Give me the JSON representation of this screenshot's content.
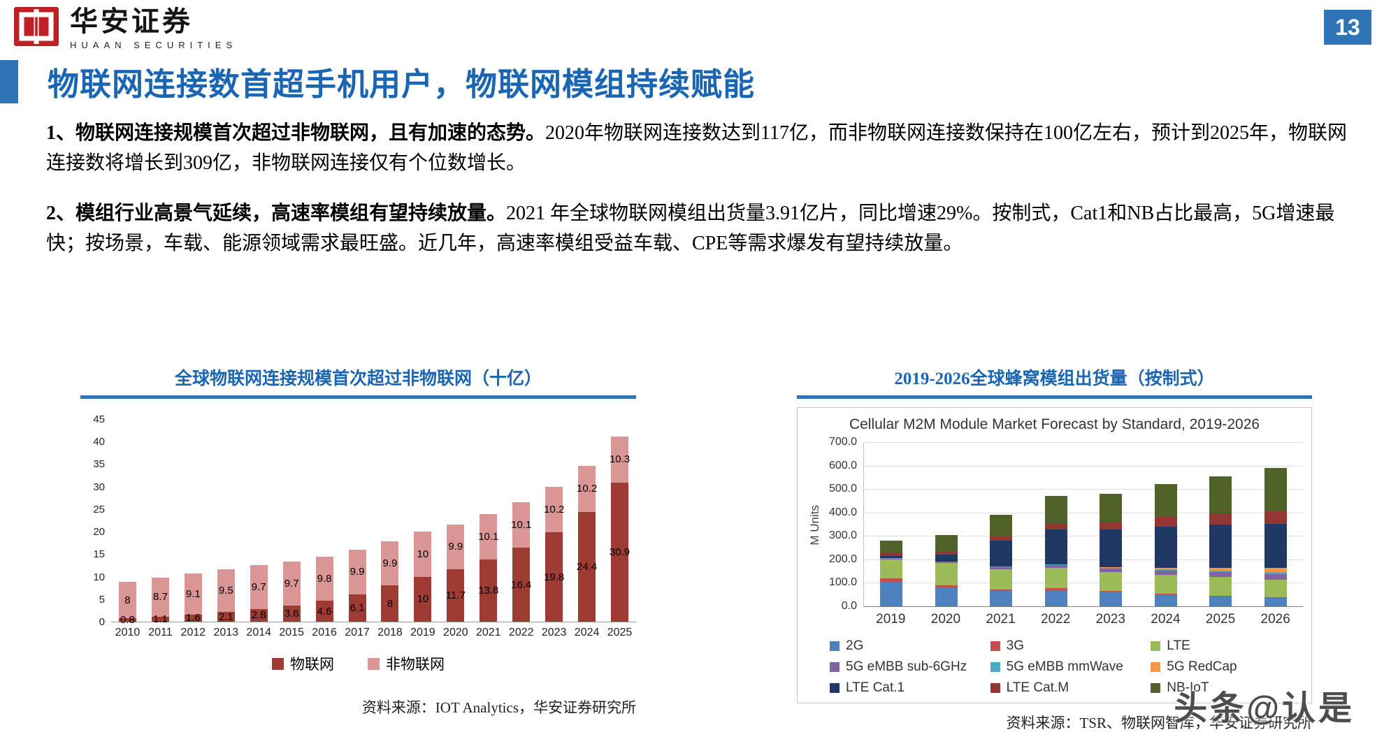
{
  "page": {
    "number": "13",
    "brand": {
      "name_cn": "华安证券",
      "name_en": "HUAAN SECURITIES"
    },
    "title": "物联网连接数首超手机用户，物联网模组持续赋能",
    "paragraphs": [
      {
        "lead": "1、物联网连接规模首次超过非物联网，且有加速的态势。",
        "body": "2020年物联网连接数达到117亿，而非物联网连接数保持在100亿左右，预计到2025年，物联网连接数将增长到309亿，非物联网连接仅有个位数增长。"
      },
      {
        "lead": "2、模组行业高景气延续，高速率模组有望持续放量。",
        "body": "2021 年全球物联网模组出货量3.91亿片，同比增速29%。按制式，Cat1和NB占比最高，5G增速最快；按场景，车载、能源领域需求最旺盛。近几年，高速率模组受益车载、CPE等需求爆发有望持续放量。"
      }
    ],
    "watermark": "头条@认是"
  },
  "chart_data": [
    {
      "type": "bar",
      "stacked": true,
      "title": "全球物联网连接规模首次超过非物联网（十亿）",
      "source": "资料来源：IOT Analytics，华安证券研究所",
      "categories": [
        "2010",
        "2011",
        "2012",
        "2013",
        "2014",
        "2015",
        "2016",
        "2017",
        "2018",
        "2019",
        "2020",
        "2021",
        "2022",
        "2023",
        "2024",
        "2025"
      ],
      "series": [
        {
          "name": "物联网",
          "color": "#9E3B32",
          "values": [
            0.8,
            1.1,
            1.6,
            2.1,
            2.8,
            3.6,
            4.6,
            6.1,
            8,
            10,
            11.7,
            13.8,
            16.4,
            19.8,
            24.4,
            30.9
          ]
        },
        {
          "name": "非物联网",
          "color": "#D99694",
          "values": [
            8,
            8.7,
            9.1,
            9.5,
            9.7,
            9.7,
            9.8,
            9.9,
            9.9,
            10,
            9.9,
            10.1,
            10.1,
            10.2,
            10.2,
            10.3
          ]
        }
      ],
      "ylim": [
        0,
        45
      ],
      "yticks": [
        0,
        5,
        10,
        15,
        20,
        25,
        30,
        35,
        40,
        45
      ],
      "grid": false,
      "legend_position": "bottom",
      "data_labels": true
    },
    {
      "type": "bar",
      "stacked": true,
      "title": "2019-2026全球蜂窝模组出货量（按制式）",
      "inner_title": "Cellular M2M Module Market Forecast by Standard, 2019-2026",
      "source": "资料来源：TSR、物联网智库，华安证券研究所",
      "ylabel": "M Units",
      "categories": [
        "2019",
        "2020",
        "2021",
        "2022",
        "2023",
        "2024",
        "2025",
        "2026"
      ],
      "series": [
        {
          "name": "2G",
          "color": "#4E81BD",
          "values": [
            105,
            80,
            65,
            70,
            60,
            50,
            42,
            35
          ]
        },
        {
          "name": "3G",
          "color": "#C0504D",
          "values": [
            15,
            10,
            8,
            8,
            6,
            5,
            4,
            3
          ]
        },
        {
          "name": "LTE",
          "color": "#9BBB59",
          "values": [
            80,
            95,
            85,
            85,
            80,
            80,
            78,
            75
          ]
        },
        {
          "name": "5G eMBB sub-6GHz",
          "color": "#8064A2",
          "values": [
            3,
            5,
            8,
            12,
            15,
            18,
            22,
            25
          ]
        },
        {
          "name": "5G eMBB mmWave",
          "color": "#4BACC6",
          "values": [
            2,
            2,
            3,
            3,
            4,
            5,
            6,
            7
          ]
        },
        {
          "name": "5G RedCap",
          "color": "#F79646",
          "values": [
            0,
            0,
            0,
            1,
            3,
            7,
            12,
            18
          ]
        },
        {
          "name": "LTE Cat.1",
          "color": "#1F3864",
          "values": [
            10,
            30,
            110,
            150,
            160,
            175,
            185,
            190
          ]
        },
        {
          "name": "LTE Cat.M",
          "color": "#943634",
          "values": [
            15,
            15,
            20,
            25,
            32,
            40,
            46,
            52
          ]
        },
        {
          "name": "NB-IoT",
          "color": "#4F6228",
          "values": [
            50,
            68,
            91,
            116,
            120,
            140,
            160,
            185
          ]
        }
      ],
      "ylim": [
        0,
        700
      ],
      "ytick_labels": [
        "0.0",
        "100.0",
        "200.0",
        "300.0",
        "400.0",
        "500.0",
        "600.0",
        "700.0"
      ],
      "ytick_step": 100,
      "grid": true,
      "legend_position": "bottom",
      "data_labels": false
    }
  ]
}
